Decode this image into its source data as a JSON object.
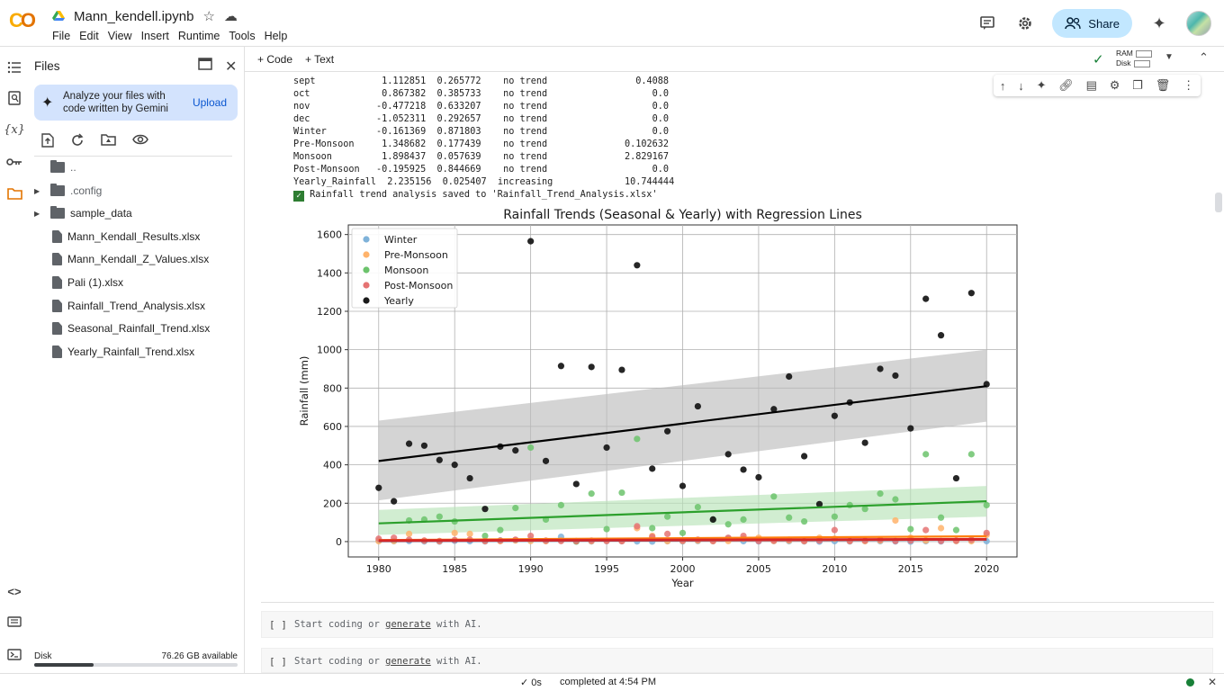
{
  "app": {
    "title": "Mann_kendell.ipynb",
    "menu": [
      "File",
      "Edit",
      "View",
      "Insert",
      "Runtime",
      "Tools",
      "Help"
    ],
    "share_label": "Share"
  },
  "files_panel": {
    "title": "Files",
    "gemini_text": "Analyze your files with code written by Gemini",
    "upload_label": "Upload",
    "items": [
      {
        "name": "..",
        "type": "folder-up"
      },
      {
        "name": ".config",
        "type": "folder"
      },
      {
        "name": "sample_data",
        "type": "folder"
      },
      {
        "name": "Mann_Kendall_Results.xlsx",
        "type": "file"
      },
      {
        "name": "Mann_Kendall_Z_Values.xlsx",
        "type": "file"
      },
      {
        "name": "Pali (1).xlsx",
        "type": "file"
      },
      {
        "name": "Rainfall_Trend_Analysis.xlsx",
        "type": "file"
      },
      {
        "name": "Seasonal_Rainfall_Trend.xlsx",
        "type": "file"
      },
      {
        "name": "Yearly_Rainfall_Trend.xlsx",
        "type": "file"
      }
    ],
    "disk_label": "Disk",
    "disk_available": "76.26 GB available",
    "disk_used_fraction": 0.29
  },
  "toolbar": {
    "code_label": "+ Code",
    "text_label": "+ Text",
    "ram_label": "RAM",
    "disk_label": "Disk"
  },
  "output_lines": [
    "sept            1.112851  0.265772    no trend                0.4088",
    "oct             0.867382  0.385733    no trend                   0.0",
    "nov            -0.477218  0.633207    no trend                   0.0",
    "dec            -1.052311  0.292657    no trend                   0.0",
    "Winter         -0.161369  0.871803    no trend                   0.0",
    "Pre-Monsoon     1.348682  0.177439    no trend              0.102632",
    "Monsoon         1.898437  0.057639    no trend              2.829167",
    "Post-Monsoon   -0.195925  0.844669    no trend                   0.0",
    "Yearly_Rainfall  2.235156  0.025407  increasing             10.744444"
  ],
  "output_saved": "Rainfall trend analysis saved to 'Rainfall_Trend_Analysis.xlsx'",
  "empty_cells": [
    {
      "bracket": "[ ]",
      "placeholder_pre": "Start coding or ",
      "placeholder_link": "generate",
      "placeholder_post": " with AI."
    },
    {
      "bracket": "[ ]",
      "placeholder_pre": "Start coding or ",
      "placeholder_link": "generate",
      "placeholder_post": " with AI."
    }
  ],
  "status": {
    "exec_time": "✓ 0s",
    "completed": "completed at 4:54 PM"
  },
  "chart_data": {
    "type": "scatter",
    "title": "Rainfall Trends (Seasonal & Yearly) with Regression Lines",
    "xlabel": "Year",
    "ylabel": "Rainfall (mm)",
    "xlim": [
      1978,
      2022
    ],
    "ylim": [
      -80,
      1650
    ],
    "xticks": [
      1980,
      1985,
      1990,
      1995,
      2000,
      2005,
      2010,
      2015,
      2020
    ],
    "yticks": [
      0,
      200,
      400,
      600,
      800,
      1000,
      1200,
      1400,
      1600
    ],
    "grid": true,
    "legend_position": "top-left",
    "series": [
      {
        "name": "Winter",
        "color": "#7fb2d9",
        "x": [
          1980,
          1981,
          1982,
          1983,
          1984,
          1985,
          1986,
          1987,
          1988,
          1989,
          1990,
          1991,
          1992,
          1993,
          1994,
          1995,
          1996,
          1997,
          1998,
          1999,
          2000,
          2001,
          2002,
          2003,
          2004,
          2005,
          2006,
          2007,
          2008,
          2009,
          2010,
          2011,
          2012,
          2013,
          2014,
          2015,
          2016,
          2017,
          2018,
          2019,
          2020
        ],
        "y": [
          5,
          2,
          3,
          1,
          0,
          4,
          2,
          1,
          6,
          8,
          10,
          3,
          25,
          2,
          1,
          3,
          2,
          1,
          0,
          2,
          1,
          3,
          2,
          18,
          2,
          1,
          3,
          2,
          1,
          0,
          2,
          1,
          3,
          2,
          1,
          0,
          2,
          1,
          3,
          5,
          2
        ],
        "fit": [
          2,
          10
        ]
      },
      {
        "name": "Pre-Monsoon",
        "color": "#ffb36b",
        "x": [
          1980,
          1981,
          1982,
          1983,
          1984,
          1985,
          1986,
          1987,
          1988,
          1989,
          1990,
          1991,
          1992,
          1993,
          1994,
          1995,
          1996,
          1997,
          1998,
          1999,
          2000,
          2001,
          2002,
          2003,
          2004,
          2005,
          2006,
          2007,
          2008,
          2009,
          2010,
          2011,
          2012,
          2013,
          2014,
          2015,
          2016,
          2017,
          2018,
          2019,
          2020
        ],
        "y": [
          2,
          3,
          40,
          5,
          2,
          45,
          40,
          3,
          2,
          6,
          3,
          2,
          5,
          3,
          2,
          5,
          3,
          70,
          30,
          2,
          3,
          5,
          2,
          3,
          15,
          20,
          3,
          5,
          2,
          20,
          15,
          3,
          2,
          5,
          110,
          20,
          5,
          70,
          3,
          2,
          35
        ],
        "fit": [
          8,
          28
        ]
      },
      {
        "name": "Monsoon",
        "color": "#6cc36c",
        "x": [
          1982,
          1983,
          1984,
          1985,
          1987,
          1988,
          1989,
          1990,
          1991,
          1992,
          1993,
          1994,
          1995,
          1996,
          1997,
          1998,
          1999,
          2000,
          2001,
          2002,
          2003,
          2004,
          2006,
          2007,
          2008,
          2010,
          2011,
          2012,
          2013,
          2014,
          2015,
          2016,
          2017,
          2018,
          2019,
          2020
        ],
        "y": [
          110,
          115,
          130,
          105,
          30,
          60,
          175,
          490,
          115,
          190,
          0,
          250,
          65,
          255,
          535,
          70,
          130,
          45,
          180,
          115,
          90,
          115,
          235,
          125,
          105,
          130,
          190,
          170,
          250,
          220,
          65,
          455,
          125,
          60,
          455,
          190
        ],
        "fit": [
          95,
          210
        ]
      },
      {
        "name": "Post-Monsoon",
        "color": "#e57373",
        "x": [
          1980,
          1981,
          1982,
          1983,
          1984,
          1985,
          1986,
          1987,
          1988,
          1989,
          1990,
          1991,
          1992,
          1993,
          1994,
          1995,
          1996,
          1997,
          1998,
          1999,
          2000,
          2001,
          2002,
          2003,
          2004,
          2005,
          2006,
          2007,
          2008,
          2009,
          2010,
          2011,
          2012,
          2013,
          2014,
          2015,
          2016,
          2017,
          2018,
          2019,
          2020
        ],
        "y": [
          15,
          20,
          10,
          5,
          3,
          8,
          10,
          3,
          5,
          10,
          30,
          5,
          3,
          2,
          5,
          3,
          2,
          80,
          25,
          40,
          5,
          10,
          3,
          20,
          30,
          3,
          5,
          10,
          3,
          5,
          60,
          3,
          5,
          10,
          3,
          5,
          60,
          3,
          5,
          10,
          45
        ],
        "fit": [
          5,
          12
        ]
      },
      {
        "name": "Yearly",
        "color": "#1a1a1a",
        "x": [
          1980,
          1981,
          1982,
          1983,
          1984,
          1985,
          1986,
          1987,
          1988,
          1989,
          1990,
          1991,
          1992,
          1993,
          1994,
          1995,
          1996,
          1997,
          1998,
          1999,
          2000,
          2001,
          2002,
          2003,
          2004,
          2005,
          2006,
          2007,
          2008,
          2009,
          2010,
          2011,
          2012,
          2013,
          2014,
          2015,
          2016,
          2017,
          2018,
          2019,
          2020
        ],
        "y": [
          280,
          210,
          510,
          500,
          425,
          400,
          330,
          170,
          495,
          475,
          1565,
          420,
          915,
          300,
          910,
          490,
          895,
          1440,
          380,
          575,
          290,
          705,
          115,
          455,
          375,
          335,
          690,
          860,
          445,
          195,
          655,
          725,
          515,
          900,
          865,
          590,
          1265,
          1075,
          330,
          1295,
          820
        ],
        "fit": [
          420,
          810
        ]
      }
    ],
    "confidence_bands": [
      {
        "series": "Yearly",
        "color": "#bdbdbd",
        "upper": [
          630,
          1000
        ],
        "lower": [
          215,
          625
        ]
      },
      {
        "series": "Monsoon",
        "color": "#b9e3b9",
        "upper": [
          165,
          290
        ],
        "lower": [
          35,
          130
        ]
      }
    ]
  }
}
